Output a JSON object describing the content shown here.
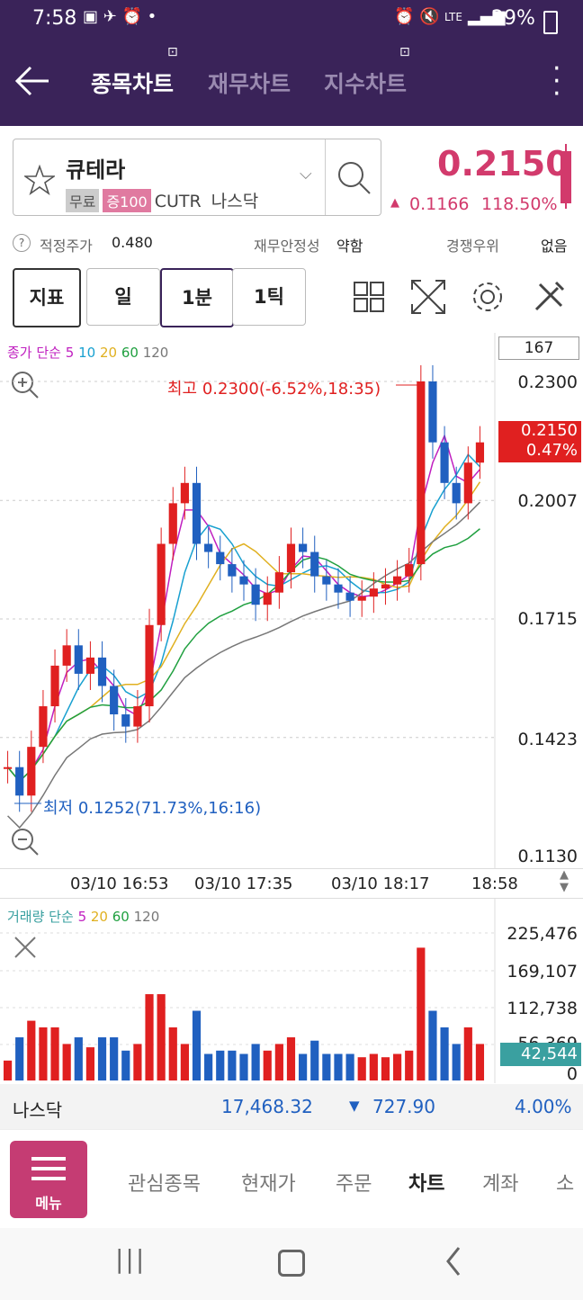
{
  "status_bar": {
    "time": "7:58",
    "lte": "LTE",
    "battery": "29%"
  },
  "header": {
    "tabs": [
      {
        "label": "종목차트",
        "active": true
      },
      {
        "label": "재무차트",
        "active": false
      },
      {
        "label": "지수차트",
        "active": false
      }
    ]
  },
  "stock": {
    "name": "큐테라",
    "tags": [
      "무료",
      "증100"
    ],
    "ticker": "CUTR",
    "market": "나스닥",
    "price": "0.2150",
    "change": "0.1166",
    "change_pct": "118.50%"
  },
  "info_bar": {
    "fair_price_label": "적정주가",
    "fair_price_value": "0.480",
    "stability_label": "재무안정성",
    "stability_value": "약함",
    "competition_label": "경쟁우위",
    "competition_value": "없음"
  },
  "toolbar": {
    "indicator_label": "지표",
    "period_day": "일",
    "period_1min": "1분",
    "period_1tick": "1틱"
  },
  "chart": {
    "ma_legend": {
      "prefix": "종가 단순",
      "ma5": "5",
      "ma10": "10",
      "ma20": "20",
      "ma60": "60",
      "ma120": "120"
    },
    "count_box": "167",
    "y_labels": [
      "0.2300",
      "0.2007",
      "0.1715",
      "0.1423",
      "0.1130"
    ],
    "current_price_label": "0.2150",
    "current_pct_label": "0.47%",
    "high_annotation": "최고 0.2300(-6.52%,18:35)",
    "low_annotation": "최저 0.1252(71.73%,16:16)",
    "x_labels": [
      "03/10 16:53",
      "03/10 17:35",
      "03/10 18:17",
      "18:58"
    ]
  },
  "volume": {
    "legend": {
      "prefix": "거래량 단순",
      "ma5": "5",
      "ma20": "20",
      "ma60": "60",
      "ma120": "120"
    },
    "y_labels": [
      "225,476",
      "169,107",
      "112,738",
      "56,369",
      "0"
    ],
    "current_label": "42,544"
  },
  "index_bar": {
    "name": "나스닥",
    "value": "17,468.32",
    "change": "727.90",
    "pct": "4.00%"
  },
  "bottom_nav": {
    "menu_label": "메뉴",
    "items": [
      "관심종목",
      "현재가",
      "주문",
      "차트",
      "계좌",
      "소"
    ],
    "active_index": 3
  },
  "colors": {
    "header_bg": "#3a2359",
    "price_red": "#d23a6c",
    "up_red": "#e02020",
    "down_blue": "#2060c0",
    "ma5": "#c020c0",
    "ma10": "#18a0d0",
    "ma20": "#e0b020",
    "ma60": "#20a040",
    "ma120": "#777777",
    "vol_current_bg": "#3aa0a0",
    "menu_btn": "#c53c73"
  },
  "chart_data": {
    "type": "candlestick",
    "price_range": [
      0.113,
      0.23
    ],
    "candles_approx": [
      0.135,
      0.128,
      0.14,
      0.15,
      0.16,
      0.165,
      0.158,
      0.162,
      0.155,
      0.148,
      0.145,
      0.15,
      0.17,
      0.19,
      0.2,
      0.205,
      0.19,
      0.188,
      0.185,
      0.182,
      0.18,
      0.175,
      0.178,
      0.183,
      0.19,
      0.188,
      0.182,
      0.18,
      0.178,
      0.176,
      0.177,
      0.179,
      0.18,
      0.182,
      0.185,
      0.23,
      0.215,
      0.205,
      0.2,
      0.21,
      0.215
    ]
  }
}
